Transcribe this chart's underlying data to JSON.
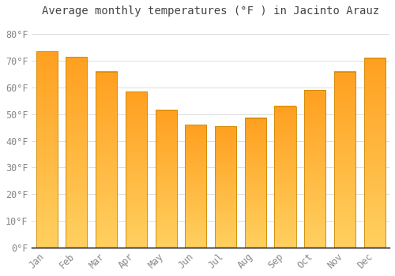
{
  "title": "Average monthly temperatures (°F ) in Jacinto Arauz",
  "months": [
    "Jan",
    "Feb",
    "Mar",
    "Apr",
    "May",
    "Jun",
    "Jul",
    "Aug",
    "Sep",
    "Oct",
    "Nov",
    "Dec"
  ],
  "values": [
    73.5,
    71.5,
    66.0,
    58.5,
    51.5,
    46.0,
    45.5,
    48.5,
    53.0,
    59.0,
    66.0,
    71.0
  ],
  "bar_color_top": "#FFA020",
  "bar_color_bottom": "#FFD060",
  "bar_edge_color": "#CC8800",
  "background_color": "#FFFFFF",
  "grid_color": "#DDDDDD",
  "ylim": [
    0,
    85
  ],
  "yticks": [
    0,
    10,
    20,
    30,
    40,
    50,
    60,
    70,
    80
  ],
  "title_fontsize": 10,
  "tick_fontsize": 8.5,
  "tick_color": "#888888",
  "title_color": "#444444"
}
